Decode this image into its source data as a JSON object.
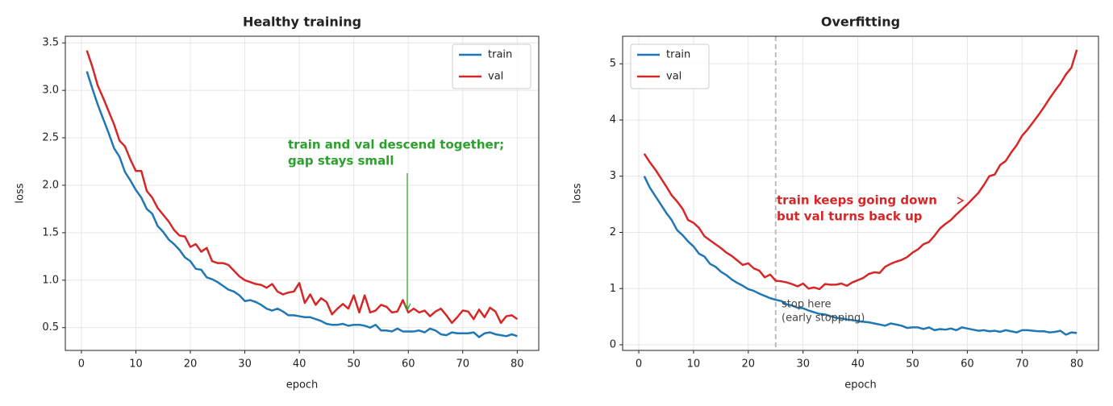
{
  "chart_data": [
    {
      "type": "line",
      "title": "Healthy training",
      "xlabel": "epoch",
      "ylabel": "loss",
      "x": [
        1,
        2,
        3,
        4,
        5,
        6,
        7,
        8,
        9,
        10,
        11,
        12,
        13,
        14,
        15,
        16,
        17,
        18,
        19,
        20,
        21,
        22,
        23,
        24,
        25,
        26,
        27,
        28,
        29,
        30,
        31,
        32,
        33,
        34,
        35,
        36,
        37,
        38,
        39,
        40,
        41,
        42,
        43,
        44,
        45,
        46,
        47,
        48,
        49,
        50,
        51,
        52,
        53,
        54,
        55,
        56,
        57,
        58,
        59,
        60,
        61,
        62,
        63,
        64,
        65,
        66,
        67,
        68,
        69,
        70,
        71,
        72,
        73,
        74,
        75,
        76,
        77,
        78,
        79,
        80
      ],
      "series": [
        {
          "name": "train",
          "color": "#1f77b4",
          "values": [
            3.2,
            3.02,
            2.85,
            2.7,
            2.55,
            2.39,
            2.3,
            2.14,
            2.05,
            1.95,
            1.87,
            1.75,
            1.7,
            1.57,
            1.51,
            1.43,
            1.38,
            1.32,
            1.24,
            1.2,
            1.12,
            1.11,
            1.03,
            1.01,
            0.98,
            0.94,
            0.9,
            0.88,
            0.84,
            0.78,
            0.79,
            0.77,
            0.74,
            0.7,
            0.68,
            0.7,
            0.67,
            0.63,
            0.63,
            0.62,
            0.61,
            0.61,
            0.59,
            0.57,
            0.54,
            0.53,
            0.53,
            0.54,
            0.52,
            0.53,
            0.53,
            0.52,
            0.5,
            0.53,
            0.47,
            0.47,
            0.46,
            0.49,
            0.46,
            0.46,
            0.46,
            0.47,
            0.45,
            0.49,
            0.47,
            0.43,
            0.42,
            0.45,
            0.44,
            0.44,
            0.44,
            0.45,
            0.4,
            0.44,
            0.45,
            0.43,
            0.42,
            0.41,
            0.43,
            0.41
          ]
        },
        {
          "name": "val",
          "color": "#d62728",
          "values": [
            3.42,
            3.25,
            3.05,
            2.92,
            2.78,
            2.64,
            2.47,
            2.41,
            2.27,
            2.15,
            2.15,
            1.94,
            1.87,
            1.76,
            1.69,
            1.62,
            1.53,
            1.47,
            1.46,
            1.35,
            1.38,
            1.3,
            1.34,
            1.2,
            1.18,
            1.18,
            1.16,
            1.1,
            1.04,
            1.0,
            0.98,
            0.96,
            0.95,
            0.92,
            0.96,
            0.88,
            0.85,
            0.87,
            0.88,
            0.97,
            0.76,
            0.85,
            0.74,
            0.81,
            0.77,
            0.64,
            0.7,
            0.75,
            0.7,
            0.84,
            0.66,
            0.84,
            0.66,
            0.68,
            0.74,
            0.72,
            0.66,
            0.67,
            0.79,
            0.66,
            0.7,
            0.66,
            0.68,
            0.62,
            0.67,
            0.7,
            0.63,
            0.55,
            0.61,
            0.68,
            0.67,
            0.59,
            0.69,
            0.61,
            0.71,
            0.67,
            0.55,
            0.62,
            0.63,
            0.59
          ]
        }
      ],
      "xlim": [
        -2.95,
        83.95
      ],
      "ylim": [
        0.26,
        3.57
      ],
      "xticks": [
        0,
        10,
        20,
        30,
        40,
        50,
        60,
        70,
        80
      ],
      "yticks": [
        0.5,
        {
          "value": 1,
          "label": "1.0"
        },
        1.5,
        {
          "value": 2,
          "label": "2.0"
        },
        2.5,
        {
          "value": 3,
          "label": "3.0"
        },
        3.5
      ],
      "grid": true,
      "legend": "upper right",
      "annotations": [
        {
          "text": [
            "train and val descend together;",
            "gap stays small"
          ],
          "color": "#2ca02c"
        }
      ]
    },
    {
      "type": "line",
      "title": "Overfitting",
      "xlabel": "epoch",
      "ylabel": "loss",
      "x": [
        1,
        2,
        3,
        4,
        5,
        6,
        7,
        8,
        9,
        10,
        11,
        12,
        13,
        14,
        15,
        16,
        17,
        18,
        19,
        20,
        21,
        22,
        23,
        24,
        25,
        26,
        27,
        28,
        29,
        30,
        31,
        32,
        33,
        34,
        35,
        36,
        37,
        38,
        39,
        40,
        41,
        42,
        43,
        44,
        45,
        46,
        47,
        48,
        49,
        50,
        51,
        52,
        53,
        54,
        55,
        56,
        57,
        58,
        59,
        60,
        61,
        62,
        63,
        64,
        65,
        66,
        67,
        68,
        69,
        70,
        71,
        72,
        73,
        74,
        75,
        76,
        77,
        78,
        79,
        80
      ],
      "series": [
        {
          "name": "train",
          "color": "#1f77b4",
          "values": [
            3.0,
            2.8,
            2.65,
            2.5,
            2.35,
            2.22,
            2.04,
            1.95,
            1.84,
            1.75,
            1.62,
            1.57,
            1.44,
            1.39,
            1.3,
            1.24,
            1.16,
            1.1,
            1.05,
            0.99,
            0.96,
            0.91,
            0.87,
            0.83,
            0.8,
            0.78,
            0.72,
            0.7,
            0.66,
            0.65,
            0.61,
            0.58,
            0.55,
            0.54,
            0.51,
            0.48,
            0.47,
            0.45,
            0.44,
            0.42,
            0.41,
            0.4,
            0.38,
            0.36,
            0.34,
            0.38,
            0.36,
            0.34,
            0.3,
            0.31,
            0.31,
            0.28,
            0.31,
            0.26,
            0.28,
            0.27,
            0.29,
            0.26,
            0.31,
            0.29,
            0.27,
            0.25,
            0.26,
            0.24,
            0.25,
            0.23,
            0.26,
            0.24,
            0.22,
            0.26,
            0.26,
            0.25,
            0.24,
            0.24,
            0.22,
            0.23,
            0.25,
            0.18,
            0.22,
            0.21
          ]
        },
        {
          "name": "val",
          "color": "#d62728",
          "values": [
            3.4,
            3.25,
            3.12,
            2.97,
            2.82,
            2.66,
            2.55,
            2.42,
            2.22,
            2.17,
            2.08,
            1.93,
            1.86,
            1.79,
            1.72,
            1.64,
            1.58,
            1.5,
            1.42,
            1.45,
            1.36,
            1.32,
            1.2,
            1.25,
            1.14,
            1.13,
            1.11,
            1.08,
            1.04,
            1.09,
            1.0,
            1.02,
            0.99,
            1.08,
            1.07,
            1.07,
            1.09,
            1.05,
            1.11,
            1.15,
            1.19,
            1.26,
            1.29,
            1.28,
            1.39,
            1.44,
            1.48,
            1.51,
            1.56,
            1.64,
            1.7,
            1.79,
            1.83,
            1.94,
            2.07,
            2.15,
            2.22,
            2.32,
            2.41,
            2.5,
            2.6,
            2.7,
            2.84,
            3.0,
            3.03,
            3.2,
            3.27,
            3.42,
            3.55,
            3.72,
            3.83,
            3.96,
            4.09,
            4.23,
            4.38,
            4.52,
            4.65,
            4.81,
            4.93,
            5.25
          ]
        }
      ],
      "xlim": [
        -2.95,
        83.95
      ],
      "ylim": [
        -0.1,
        5.49
      ],
      "xticks": [
        0,
        10,
        20,
        30,
        40,
        50,
        60,
        70,
        80
      ],
      "yticks": [
        0,
        1,
        2,
        3,
        4,
        5
      ],
      "grid": true,
      "legend": "upper left",
      "vline": 25,
      "annotations": [
        {
          "text": [
            "train keeps going down",
            "but val turns back up"
          ],
          "color": "#d62728"
        },
        {
          "text": [
            "stop here",
            "(early stopping)"
          ],
          "color": "#444444"
        }
      ]
    }
  ]
}
